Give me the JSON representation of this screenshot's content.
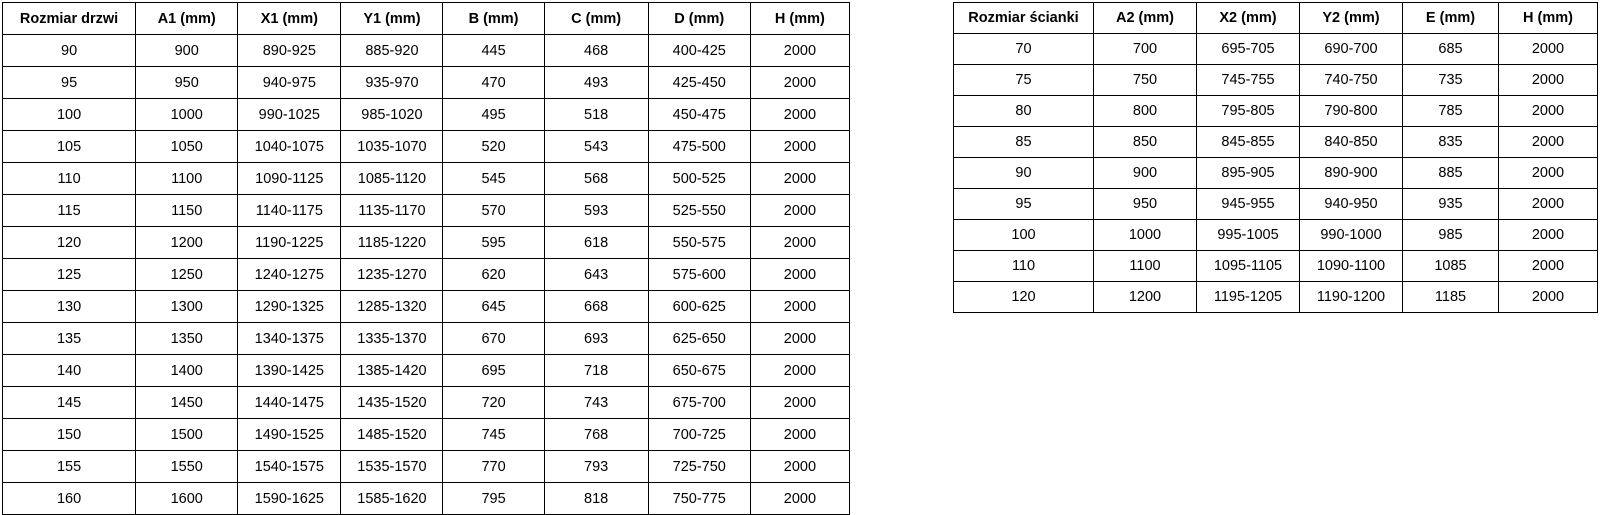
{
  "page": {
    "background_color": "#ffffff",
    "border_color": "#000000",
    "text_color": "#000000"
  },
  "door_table": {
    "headers": [
      "Rozmiar drzwi",
      "A1 (mm)",
      "X1 (mm)",
      "Y1 (mm)",
      "B (mm)",
      "C (mm)",
      "D (mm)",
      "H (mm)"
    ],
    "rows": [
      [
        "90",
        "900",
        "890-925",
        "885-920",
        "445",
        "468",
        "400-425",
        "2000"
      ],
      [
        "95",
        "950",
        "940-975",
        "935-970",
        "470",
        "493",
        "425-450",
        "2000"
      ],
      [
        "100",
        "1000",
        "990-1025",
        "985-1020",
        "495",
        "518",
        "450-475",
        "2000"
      ],
      [
        "105",
        "1050",
        "1040-1075",
        "1035-1070",
        "520",
        "543",
        "475-500",
        "2000"
      ],
      [
        "110",
        "1100",
        "1090-1125",
        "1085-1120",
        "545",
        "568",
        "500-525",
        "2000"
      ],
      [
        "115",
        "1150",
        "1140-1175",
        "1135-1170",
        "570",
        "593",
        "525-550",
        "2000"
      ],
      [
        "120",
        "1200",
        "1190-1225",
        "1185-1220",
        "595",
        "618",
        "550-575",
        "2000"
      ],
      [
        "125",
        "1250",
        "1240-1275",
        "1235-1270",
        "620",
        "643",
        "575-600",
        "2000"
      ],
      [
        "130",
        "1300",
        "1290-1325",
        "1285-1320",
        "645",
        "668",
        "600-625",
        "2000"
      ],
      [
        "135",
        "1350",
        "1340-1375",
        "1335-1370",
        "670",
        "693",
        "625-650",
        "2000"
      ],
      [
        "140",
        "1400",
        "1390-1425",
        "1385-1420",
        "695",
        "718",
        "650-675",
        "2000"
      ],
      [
        "145",
        "1450",
        "1440-1475",
        "1435-1520",
        "720",
        "743",
        "675-700",
        "2000"
      ],
      [
        "150",
        "1500",
        "1490-1525",
        "1485-1520",
        "745",
        "768",
        "700-725",
        "2000"
      ],
      [
        "155",
        "1550",
        "1540-1575",
        "1535-1570",
        "770",
        "793",
        "725-750",
        "2000"
      ],
      [
        "160",
        "1600",
        "1590-1625",
        "1585-1620",
        "795",
        "818",
        "750-775",
        "2000"
      ]
    ]
  },
  "wall_table": {
    "headers": [
      "Rozmiar ścianki",
      "A2 (mm)",
      "X2 (mm)",
      "Y2 (mm)",
      "E (mm)",
      "H (mm)"
    ],
    "rows": [
      [
        "70",
        "700",
        "695-705",
        "690-700",
        "685",
        "2000"
      ],
      [
        "75",
        "750",
        "745-755",
        "740-750",
        "735",
        "2000"
      ],
      [
        "80",
        "800",
        "795-805",
        "790-800",
        "785",
        "2000"
      ],
      [
        "85",
        "850",
        "845-855",
        "840-850",
        "835",
        "2000"
      ],
      [
        "90",
        "900",
        "895-905",
        "890-900",
        "885",
        "2000"
      ],
      [
        "95",
        "950",
        "945-955",
        "940-950",
        "935",
        "2000"
      ],
      [
        "100",
        "1000",
        "995-1005",
        "990-1000",
        "985",
        "2000"
      ],
      [
        "110",
        "1100",
        "1095-1105",
        "1090-1100",
        "1085",
        "2000"
      ],
      [
        "120",
        "1200",
        "1195-1205",
        "1190-1200",
        "1185",
        "2000"
      ]
    ]
  }
}
